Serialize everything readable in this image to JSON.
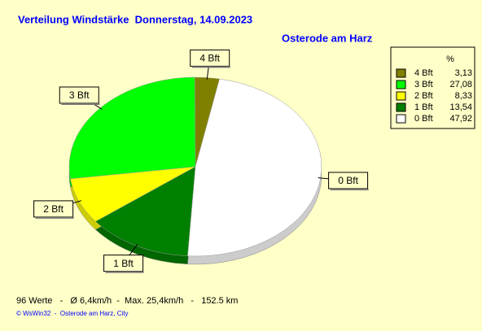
{
  "chart_data": {
    "type": "pie",
    "title": "Verteilung Windstärke  Donnerstag, 14.09.2023",
    "subtitle": "Osterode am Harz",
    "legend_header": "%",
    "categories": [
      "4 Bft",
      "3 Bft",
      "2 Bft",
      "1 Bft",
      "0 Bft"
    ],
    "values": [
      3.13,
      27.08,
      8.33,
      13.54,
      47.92
    ],
    "value_labels": [
      "3,13",
      "27,08",
      "8,33",
      "13,54",
      "47,92"
    ],
    "colors": [
      "#808000",
      "#00ff00",
      "#ffff00",
      "#008000",
      "#ffffff"
    ],
    "legend": "upper right",
    "footer": "96 Werte   -   Ø 6,4km/h  -  Max. 25,4km/h   -   152.5 km",
    "credit": "© WsWin32  -  Osterode am Harz, City"
  }
}
